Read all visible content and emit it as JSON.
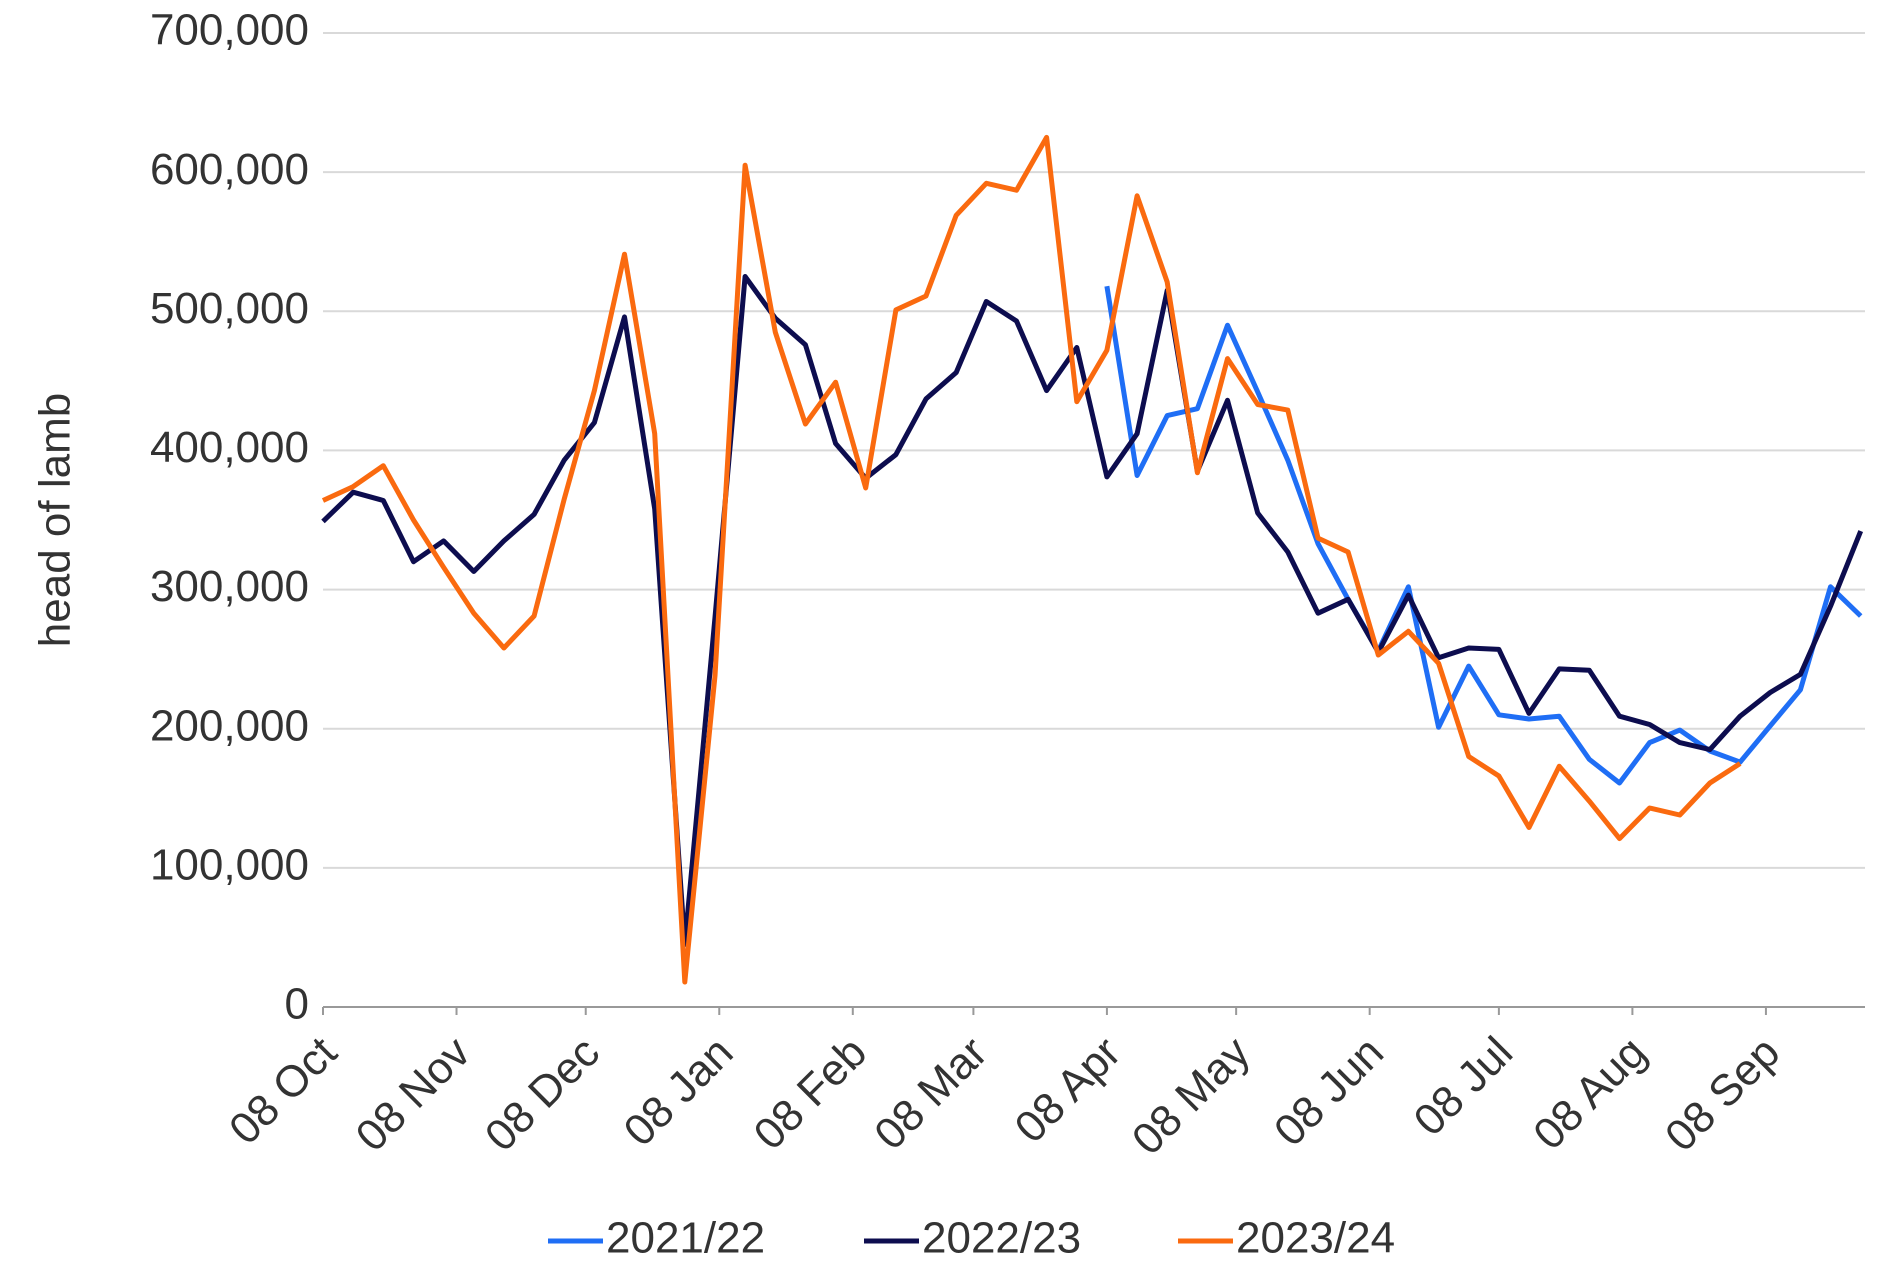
{
  "chart_data": {
    "type": "line",
    "y_label": "head of lamb",
    "x": [
      0,
      7,
      14,
      21,
      28,
      35,
      42,
      49,
      56,
      63,
      70,
      77,
      84,
      91,
      98,
      105,
      112,
      119,
      126,
      133,
      140,
      147,
      154,
      161,
      168,
      175,
      182,
      189,
      196,
      203,
      210,
      217,
      224,
      231,
      238,
      245,
      252,
      259,
      266,
      273,
      280,
      287,
      294,
      301,
      308,
      315,
      322,
      329,
      336,
      343,
      350,
      357
    ],
    "xlim": [
      0,
      358
    ],
    "xticks": [
      {
        "value": 0,
        "label": "08 Oct"
      },
      {
        "value": 31,
        "label": "08 Nov"
      },
      {
        "value": 61,
        "label": "08 Dec"
      },
      {
        "value": 92,
        "label": "08 Jan"
      },
      {
        "value": 123,
        "label": "08 Feb"
      },
      {
        "value": 151,
        "label": "08 Mar"
      },
      {
        "value": 182,
        "label": "08 Apr"
      },
      {
        "value": 212,
        "label": "08 May"
      },
      {
        "value": 243,
        "label": "08 Jun"
      },
      {
        "value": 273,
        "label": "08 Jul"
      },
      {
        "value": 304,
        "label": "08 Aug"
      },
      {
        "value": 335,
        "label": "08 Sep"
      }
    ],
    "ylim": [
      0,
      700000
    ],
    "yticks": [
      0,
      {
        "value": 100000,
        "label": "100,000"
      },
      {
        "value": 200000,
        "label": "200,000"
      },
      {
        "value": 300000,
        "label": "300,000"
      },
      {
        "value": 400000,
        "label": "400,000"
      },
      {
        "value": 500000,
        "label": "500,000"
      },
      {
        "value": 600000,
        "label": "600,000"
      },
      {
        "value": 700000,
        "label": "700,000"
      }
    ],
    "grid": true,
    "legend": "bottom",
    "series": [
      {
        "name": "2021/22",
        "color": "#1f6ef5",
        "values": [
          null,
          null,
          null,
          null,
          null,
          null,
          null,
          null,
          null,
          null,
          null,
          null,
          null,
          null,
          null,
          null,
          null,
          null,
          null,
          null,
          null,
          null,
          null,
          null,
          null,
          null,
          518000,
          382000,
          425000,
          430000,
          490000,
          442000,
          393000,
          333000,
          293000,
          256000,
          302000,
          201000,
          245000,
          210000,
          207000,
          209000,
          178000,
          161000,
          190000,
          199000,
          184000,
          176000,
          202000,
          228000,
          302000,
          281000
        ]
      },
      {
        "name": "2022/23",
        "color": "#0d0d4f",
        "values": [
          349000,
          370000,
          364000,
          320000,
          335000,
          313000,
          335000,
          354000,
          393000,
          420000,
          496000,
          358000,
          45000,
          280000,
          525000,
          495000,
          476000,
          405000,
          380000,
          397000,
          437000,
          456000,
          507000,
          493000,
          443000,
          474000,
          381000,
          412000,
          515000,
          385000,
          436000,
          355000,
          327000,
          283000,
          293000,
          255000,
          296000,
          251000,
          258000,
          257000,
          211000,
          243000,
          242000,
          209000,
          203000,
          190000,
          185000,
          209000,
          226000,
          239000,
          288000,
          342000
        ]
      },
      {
        "name": "2023/24",
        "color": "#fa6a0f",
        "values": [
          364000,
          374000,
          389000,
          350000,
          316000,
          283000,
          258000,
          281000,
          365000,
          443000,
          541000,
          412000,
          18000,
          238000,
          605000,
          485000,
          419000,
          449000,
          373000,
          501000,
          511000,
          569000,
          592000,
          587000,
          625000,
          435000,
          472000,
          583000,
          521000,
          384000,
          466000,
          433000,
          429000,
          337000,
          327000,
          253000,
          270000,
          247000,
          180000,
          166000,
          129000,
          173000,
          148000,
          121000,
          143000,
          138000,
          161000,
          175000,
          null,
          null,
          null,
          null
        ]
      }
    ]
  }
}
